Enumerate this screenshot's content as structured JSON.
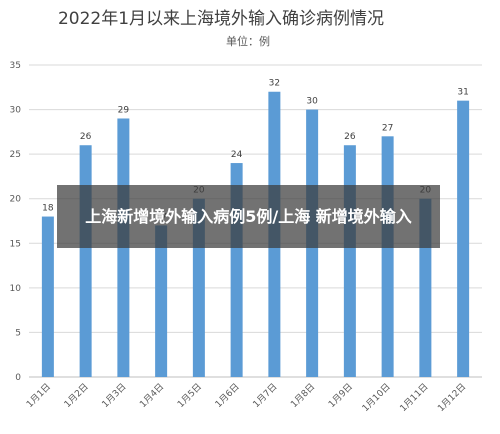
{
  "chart_data": {
    "type": "bar",
    "title": "2022年1月以来上海境外输入确诊病例情况",
    "subtitle": "单位：例",
    "categories": [
      "1月1日",
      "1月2日",
      "1月3日",
      "1月4日",
      "1月5日",
      "1月6日",
      "1月7日",
      "1月8日",
      "1月9日",
      "1月10日",
      "1月11日",
      "1月12日"
    ],
    "values": [
      18,
      26,
      29,
      17,
      20,
      24,
      32,
      30,
      26,
      27,
      20,
      31
    ],
    "ylim": [
      0,
      35
    ],
    "yticks": [
      0,
      5,
      10,
      15,
      20,
      25,
      30,
      35
    ],
    "grid": true,
    "bar_color": "#5B9BD5"
  },
  "overlay": {
    "text": "上海新增境外输入病例5例/上海 新增境外输入"
  }
}
